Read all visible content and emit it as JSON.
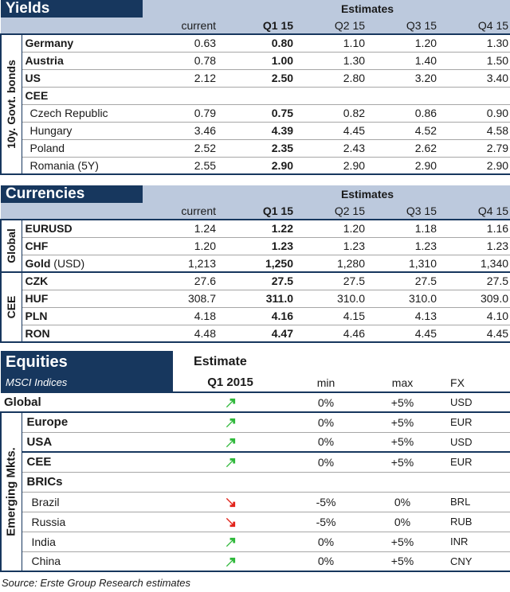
{
  "yields": {
    "title": "Yields",
    "estimates_label": "Estimates",
    "side_label": "10y. Govt. bonds",
    "columns": [
      "current",
      "Q1 15",
      "Q2 15",
      "Q3 15",
      "Q4 15"
    ],
    "rows": [
      {
        "label": "Germany",
        "bold": true,
        "indent": false,
        "values": [
          "0.63",
          "0.80",
          "1.10",
          "1.20",
          "1.30"
        ]
      },
      {
        "label": "Austria",
        "bold": true,
        "indent": false,
        "values": [
          "0.78",
          "1.00",
          "1.30",
          "1.40",
          "1.50"
        ]
      },
      {
        "label": "US",
        "bold": true,
        "indent": false,
        "values": [
          "2.12",
          "2.50",
          "2.80",
          "3.20",
          "3.40"
        ]
      },
      {
        "label": "CEE",
        "bold": true,
        "indent": false,
        "values": [
          "",
          "",
          "",
          "",
          ""
        ]
      },
      {
        "label": "Czech Republic",
        "bold": false,
        "indent": true,
        "values": [
          "0.79",
          "0.75",
          "0.82",
          "0.86",
          "0.90"
        ]
      },
      {
        "label": "Hungary",
        "bold": false,
        "indent": true,
        "values": [
          "3.46",
          "4.39",
          "4.45",
          "4.52",
          "4.58"
        ]
      },
      {
        "label": "Poland",
        "bold": false,
        "indent": true,
        "values": [
          "2.52",
          "2.35",
          "2.43",
          "2.62",
          "2.79"
        ]
      },
      {
        "label": "Romania (5Y)",
        "bold": false,
        "indent": true,
        "values": [
          "2.55",
          "2.90",
          "2.90",
          "2.90",
          "2.90"
        ]
      }
    ]
  },
  "currencies": {
    "title": "Currencies",
    "estimates_label": "Estimates",
    "columns": [
      "current",
      "Q1 15",
      "Q2 15",
      "Q3 15",
      "Q4 15"
    ],
    "groups": [
      {
        "side_label": "Global",
        "rows": [
          {
            "label": "EURUSD",
            "suffix": "",
            "values": [
              "1.24",
              "1.22",
              "1.20",
              "1.18",
              "1.16"
            ]
          },
          {
            "label": "CHF",
            "suffix": "",
            "values": [
              "1.20",
              "1.23",
              "1.23",
              "1.23",
              "1.23"
            ]
          },
          {
            "label": "Gold",
            "suffix": " (USD)",
            "values": [
              "1,213",
              "1,250",
              "1,280",
              "1,310",
              "1,340"
            ]
          }
        ]
      },
      {
        "side_label": "CEE",
        "rows": [
          {
            "label": "CZK",
            "suffix": "",
            "values": [
              "27.6",
              "27.5",
              "27.5",
              "27.5",
              "27.5"
            ]
          },
          {
            "label": "HUF",
            "suffix": "",
            "values": [
              "308.7",
              "311.0",
              "310.0",
              "310.0",
              "309.0"
            ]
          },
          {
            "label": "PLN",
            "suffix": "",
            "values": [
              "4.18",
              "4.16",
              "4.15",
              "4.13",
              "4.10"
            ]
          },
          {
            "label": "RON",
            "suffix": "",
            "values": [
              "4.48",
              "4.47",
              "4.46",
              "4.45",
              "4.45"
            ]
          }
        ]
      }
    ]
  },
  "equities": {
    "title": "Equities",
    "subtitle": "MSCI Indices",
    "estimate_label": "Estimate",
    "q_label": "Q1 2015",
    "columns": {
      "min": "min",
      "max": "max",
      "fx": "FX"
    },
    "side_label": "Emerging Mkts.",
    "colors": {
      "up": "#2eb83a",
      "down": "#e2231a"
    },
    "global_row": {
      "label": "Global",
      "direction": "up",
      "min": "0%",
      "max": "+5%",
      "fx": "USD"
    },
    "rows": [
      {
        "label": "Europe",
        "bold": true,
        "indent": false,
        "direction": "up",
        "min": "0%",
        "max": "+5%",
        "fx": "EUR"
      },
      {
        "label": "USA",
        "bold": true,
        "indent": false,
        "direction": "up",
        "min": "0%",
        "max": "+5%",
        "fx": "USD"
      },
      {
        "label": "CEE",
        "bold": true,
        "indent": false,
        "direction": "up",
        "min": "0%",
        "max": "+5%",
        "fx": "EUR"
      },
      {
        "label": "BRICs",
        "bold": true,
        "indent": false,
        "direction": "",
        "min": "",
        "max": "",
        "fx": ""
      },
      {
        "label": "Brazil",
        "bold": false,
        "indent": true,
        "direction": "down",
        "min": "-5%",
        "max": "0%",
        "fx": "BRL"
      },
      {
        "label": "Russia",
        "bold": false,
        "indent": true,
        "direction": "down",
        "min": "-5%",
        "max": "0%",
        "fx": "RUB"
      },
      {
        "label": "India",
        "bold": false,
        "indent": true,
        "direction": "up",
        "min": "0%",
        "max": "+5%",
        "fx": "INR"
      },
      {
        "label": "China",
        "bold": false,
        "indent": true,
        "direction": "up",
        "min": "0%",
        "max": "+5%",
        "fx": "CNY"
      }
    ]
  },
  "footnote": "Source: Erste Group Research estimates"
}
